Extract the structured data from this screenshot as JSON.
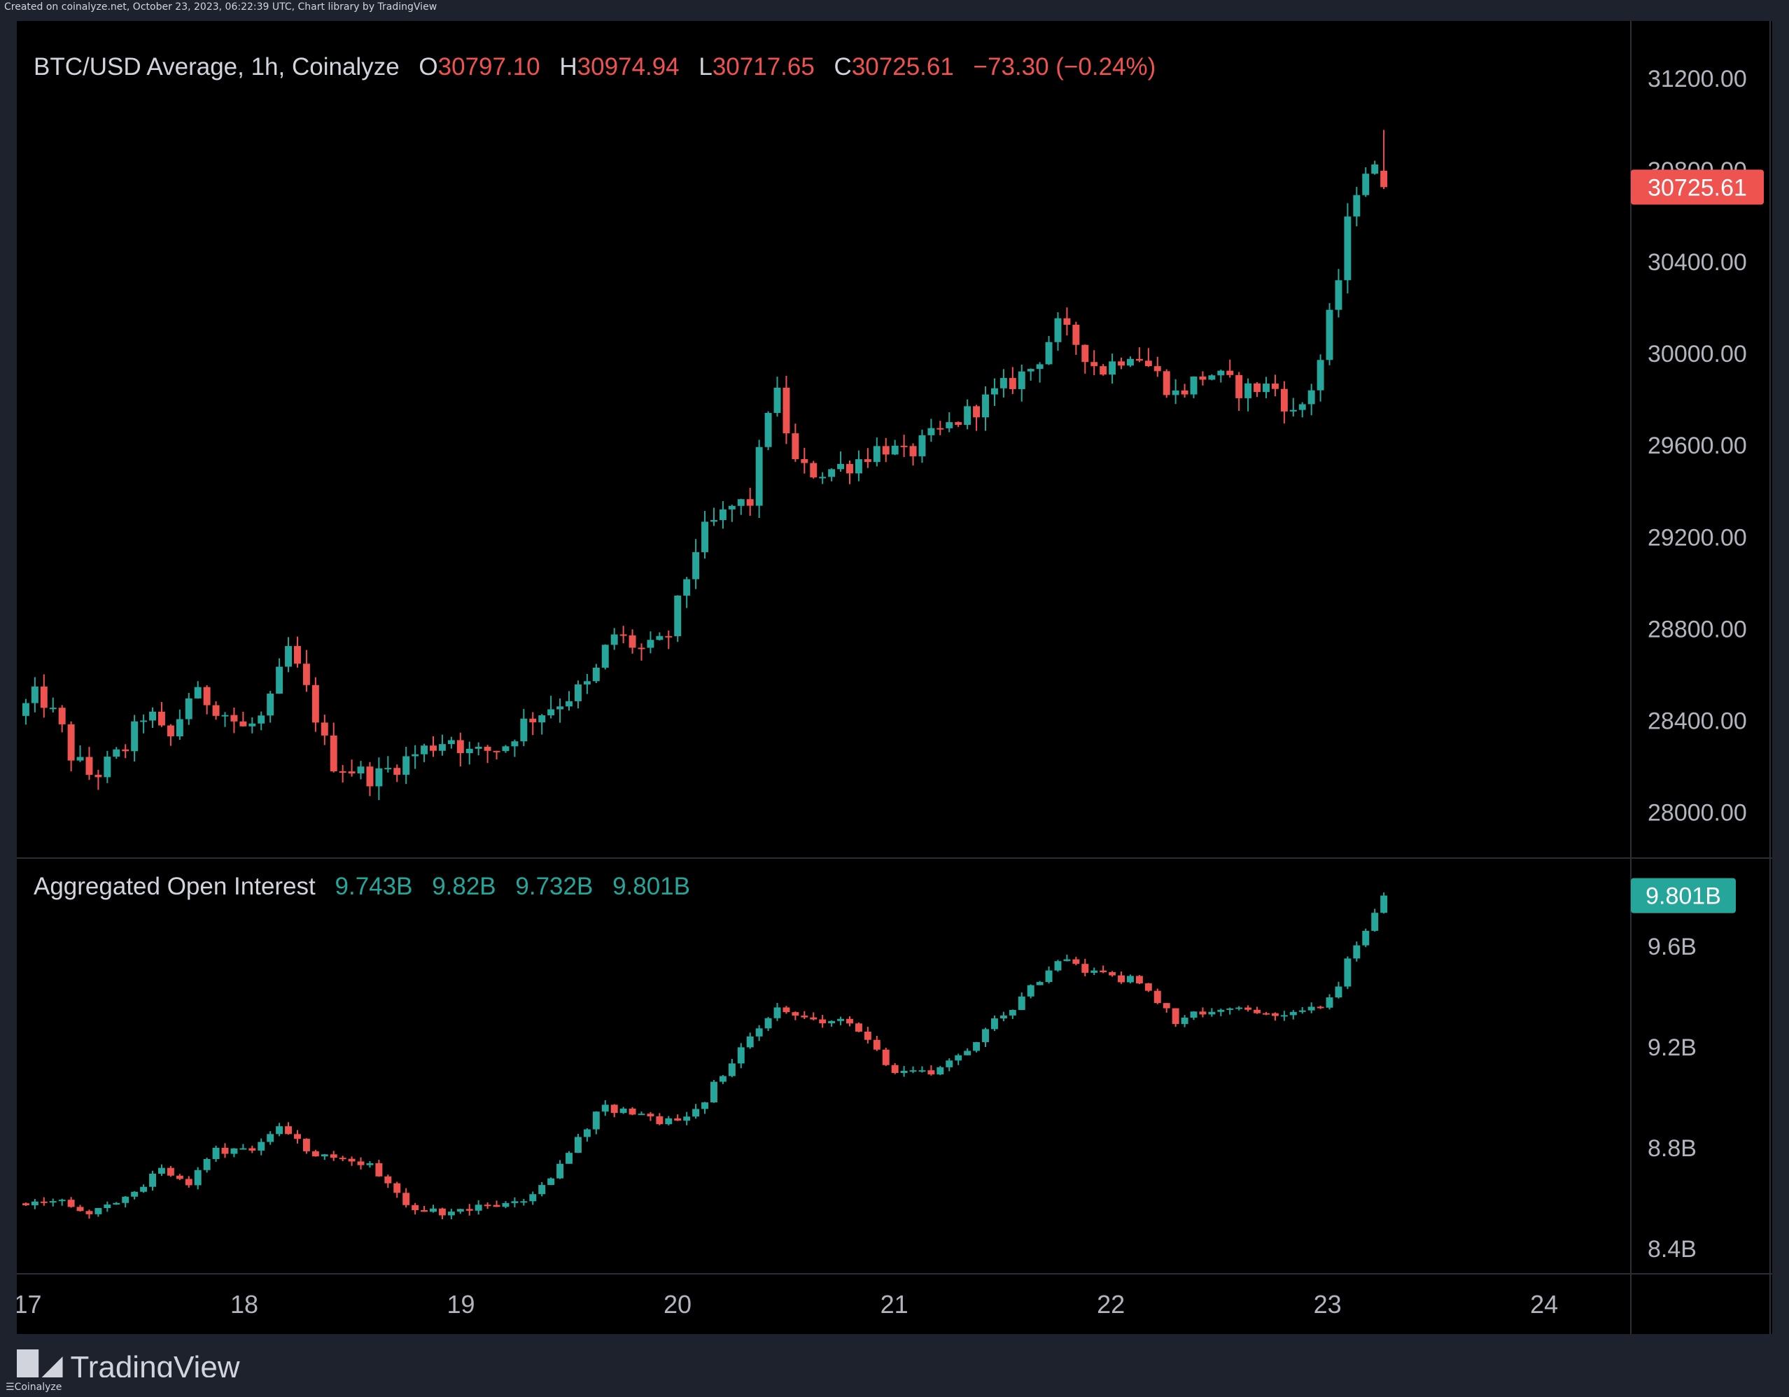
{
  "credit_top": "Created on coinalyze.net, October 23, 2023, 06:22:39 UTC, Chart library by TradingView",
  "credit_bottom": "Coinalyze",
  "tradingview_logo_text": "TradingView",
  "colors": {
    "up": "#26a69a",
    "down": "#ef5350",
    "background": "#000000",
    "axis_text": "#b2b5be",
    "legend_text": "#d1d4dc",
    "price_tag": "#ef5350",
    "oi_tag": "#26a69a",
    "separator": "#2a2e39"
  },
  "chart_data": [
    {
      "type": "candlestick",
      "title": "BTC/USD Average, 1h, Coinalyze",
      "ohlc_legend": {
        "o_label": "O",
        "o": "30797.10",
        "h_label": "H",
        "h": "30974.94",
        "l_label": "L",
        "l": "30717.65",
        "c_label": "C",
        "c": "30725.61",
        "change": "−73.30 (−0.24%)"
      },
      "last_price_tag": "30725.61",
      "last_price": 30725.61,
      "y_ticks": [
        "31200.00",
        "30800.00",
        "30400.00",
        "30000.00",
        "29600.00",
        "29200.00",
        "28800.00",
        "28400.00",
        "28000.00"
      ],
      "y_tick_values": [
        31200,
        30800,
        30400,
        30000,
        29600,
        29200,
        28800,
        28400,
        28000
      ],
      "ylim": [
        27800,
        31450
      ],
      "x_start_day": 16.95,
      "x_end_day": 24.4,
      "path_points": [
        [
          16.95,
          28420
        ],
        [
          17.05,
          28520
        ],
        [
          17.15,
          28380
        ],
        [
          17.2,
          28250
        ],
        [
          17.3,
          28150
        ],
        [
          17.45,
          28280
        ],
        [
          17.55,
          28450
        ],
        [
          17.65,
          28300
        ],
        [
          17.75,
          28520
        ],
        [
          17.85,
          28480
        ],
        [
          18.0,
          28360
        ],
        [
          18.1,
          28420
        ],
        [
          18.15,
          28560
        ],
        [
          18.2,
          28720
        ],
        [
          18.3,
          28500
        ],
        [
          18.4,
          28220
        ],
        [
          18.6,
          28150
        ],
        [
          18.8,
          28260
        ],
        [
          18.95,
          28330
        ],
        [
          19.05,
          28250
        ],
        [
          19.2,
          28290
        ],
        [
          19.3,
          28400
        ],
        [
          19.45,
          28480
        ],
        [
          19.6,
          28560
        ],
        [
          19.7,
          28780
        ],
        [
          19.85,
          28700
        ],
        [
          19.95,
          28750
        ],
        [
          20.1,
          29200
        ],
        [
          20.25,
          29330
        ],
        [
          20.35,
          29360
        ],
        [
          20.4,
          29720
        ],
        [
          20.45,
          29850
        ],
        [
          20.55,
          29500
        ],
        [
          20.65,
          29480
        ],
        [
          20.8,
          29520
        ],
        [
          20.95,
          29600
        ],
        [
          21.05,
          29550
        ],
        [
          21.15,
          29620
        ],
        [
          21.25,
          29680
        ],
        [
          21.4,
          29780
        ],
        [
          21.55,
          29880
        ],
        [
          21.65,
          29950
        ],
        [
          21.75,
          30120
        ],
        [
          21.85,
          30040
        ],
        [
          21.95,
          29920
        ],
        [
          22.1,
          30020
        ],
        [
          22.3,
          29820
        ],
        [
          22.45,
          29920
        ],
        [
          22.6,
          29840
        ],
        [
          22.75,
          29860
        ],
        [
          22.85,
          29720
        ],
        [
          22.95,
          29900
        ],
        [
          23.05,
          30320
        ],
        [
          23.1,
          30600
        ],
        [
          23.15,
          30780
        ],
        [
          23.2,
          30823
        ],
        [
          23.26,
          30726
        ]
      ],
      "last_candle": {
        "o": 30797.1,
        "h": 30974.94,
        "l": 30717.65,
        "c": 30725.61
      }
    },
    {
      "type": "candlestick",
      "title": "Aggregated Open Interest",
      "values_legend": [
        "9.743B",
        "9.82B",
        "9.732B",
        "9.801B"
      ],
      "last_value_tag": "9.801B",
      "last_value": 9.801,
      "y_ticks": [
        "9.6B",
        "9.2B",
        "8.8B",
        "8.4B"
      ],
      "y_tick_values": [
        9.6,
        9.2,
        8.8,
        8.4
      ],
      "ylim": [
        8.3,
        9.95
      ],
      "path_points": [
        [
          16.95,
          8.58
        ],
        [
          17.15,
          8.58
        ],
        [
          17.3,
          8.54
        ],
        [
          17.5,
          8.62
        ],
        [
          17.6,
          8.72
        ],
        [
          17.75,
          8.66
        ],
        [
          17.85,
          8.78
        ],
        [
          17.95,
          8.8
        ],
        [
          18.05,
          8.8
        ],
        [
          18.15,
          8.9
        ],
        [
          18.3,
          8.78
        ],
        [
          18.45,
          8.76
        ],
        [
          18.6,
          8.72
        ],
        [
          18.8,
          8.54
        ],
        [
          19.0,
          8.55
        ],
        [
          19.2,
          8.57
        ],
        [
          19.35,
          8.62
        ],
        [
          19.5,
          8.78
        ],
        [
          19.65,
          8.96
        ],
        [
          19.8,
          8.94
        ],
        [
          19.95,
          8.9
        ],
        [
          20.1,
          8.96
        ],
        [
          20.25,
          9.15
        ],
        [
          20.35,
          9.25
        ],
        [
          20.45,
          9.35
        ],
        [
          20.6,
          9.32
        ],
        [
          20.75,
          9.3
        ],
        [
          20.9,
          9.22
        ],
        [
          21.0,
          9.1
        ],
        [
          21.15,
          9.1
        ],
        [
          21.3,
          9.16
        ],
        [
          21.45,
          9.3
        ],
        [
          21.6,
          9.4
        ],
        [
          21.75,
          9.55
        ],
        [
          21.85,
          9.52
        ],
        [
          22.0,
          9.48
        ],
        [
          22.15,
          9.46
        ],
        [
          22.3,
          9.3
        ],
        [
          22.4,
          9.33
        ],
        [
          22.55,
          9.36
        ],
        [
          22.75,
          9.34
        ],
        [
          22.85,
          9.33
        ],
        [
          22.95,
          9.35
        ],
        [
          23.05,
          9.45
        ],
        [
          23.12,
          9.6
        ],
        [
          23.2,
          9.7
        ],
        [
          23.26,
          9.8
        ]
      ]
    }
  ],
  "x_axis": {
    "labels": [
      "17",
      "18",
      "19",
      "20",
      "21",
      "22",
      "23",
      "24"
    ],
    "label_days": [
      17,
      18,
      19,
      20,
      21,
      22,
      23,
      24
    ]
  }
}
